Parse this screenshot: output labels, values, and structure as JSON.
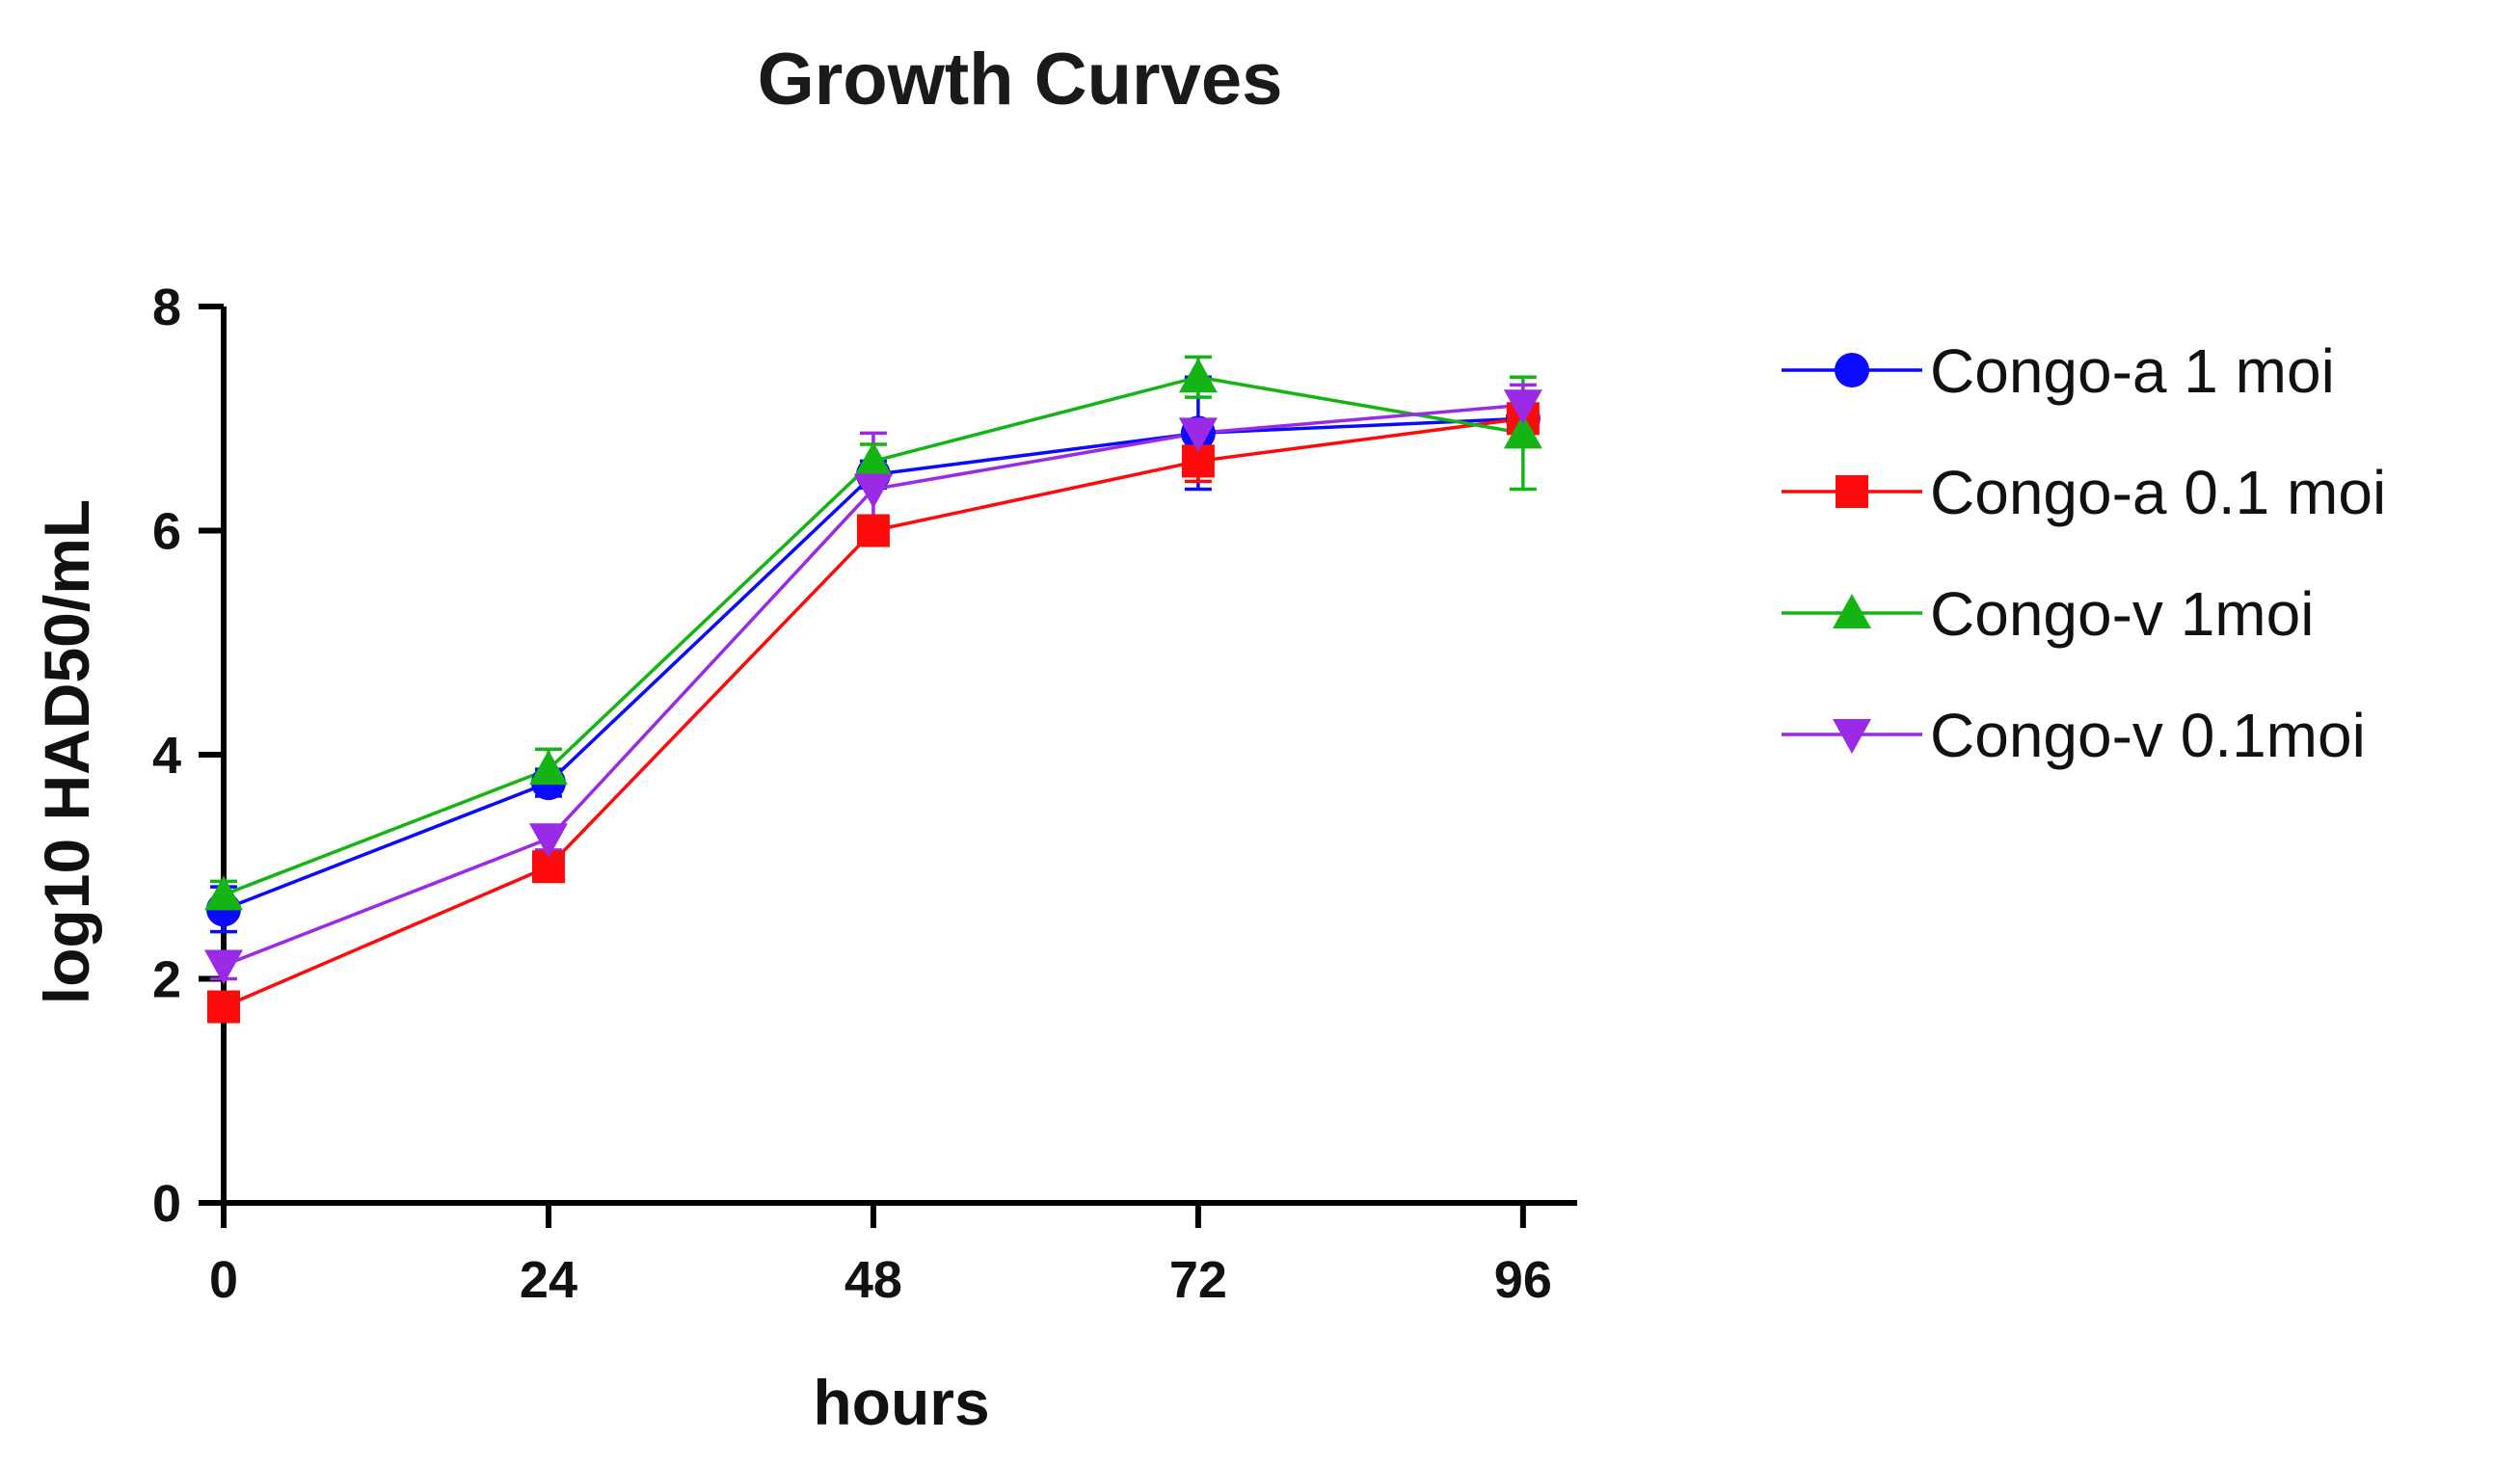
{
  "chart_data": {
    "type": "line",
    "title": "Growth Curves",
    "xlabel": "hours",
    "ylabel": "log10 HAD50/mL",
    "x": [
      0,
      24,
      48,
      72,
      96
    ],
    "xticks": [
      "0",
      "24",
      "48",
      "72",
      "96"
    ],
    "yticks": [
      "0",
      "2",
      "4",
      "6",
      "8"
    ],
    "xlim": [
      0,
      100
    ],
    "ylim": [
      0,
      8
    ],
    "grid": false,
    "legend_position": "right",
    "series": [
      {
        "name": "Congo-a 1 moi",
        "color": "#0a0aff",
        "marker": "circle",
        "values": [
          2.62,
          3.75,
          6.5,
          6.87,
          7.0
        ],
        "errors": [
          0.2,
          0.12,
          0.12,
          0.5,
          0.1
        ]
      },
      {
        "name": "Congo-a 0.1 moi",
        "color": "#ff0a0a",
        "marker": "square",
        "values": [
          1.75,
          3.0,
          6.0,
          6.62,
          7.0
        ],
        "errors": [
          0.1,
          0.1,
          0.1,
          0.18,
          0.1
        ]
      },
      {
        "name": "Congo-v 1moi",
        "color": "#14b414",
        "marker": "triangle-up",
        "values": [
          2.75,
          3.87,
          6.62,
          7.37,
          6.87
        ],
        "errors": [
          0.12,
          0.18,
          0.15,
          0.18,
          0.5
        ]
      },
      {
        "name": "Congo-v 0.1moi",
        "color": "#9a2ae6",
        "marker": "triangle-down",
        "values": [
          2.12,
          3.25,
          6.37,
          6.87,
          7.12
        ],
        "errors": [
          0.12,
          0.1,
          0.5,
          0.1,
          0.18
        ]
      }
    ]
  }
}
